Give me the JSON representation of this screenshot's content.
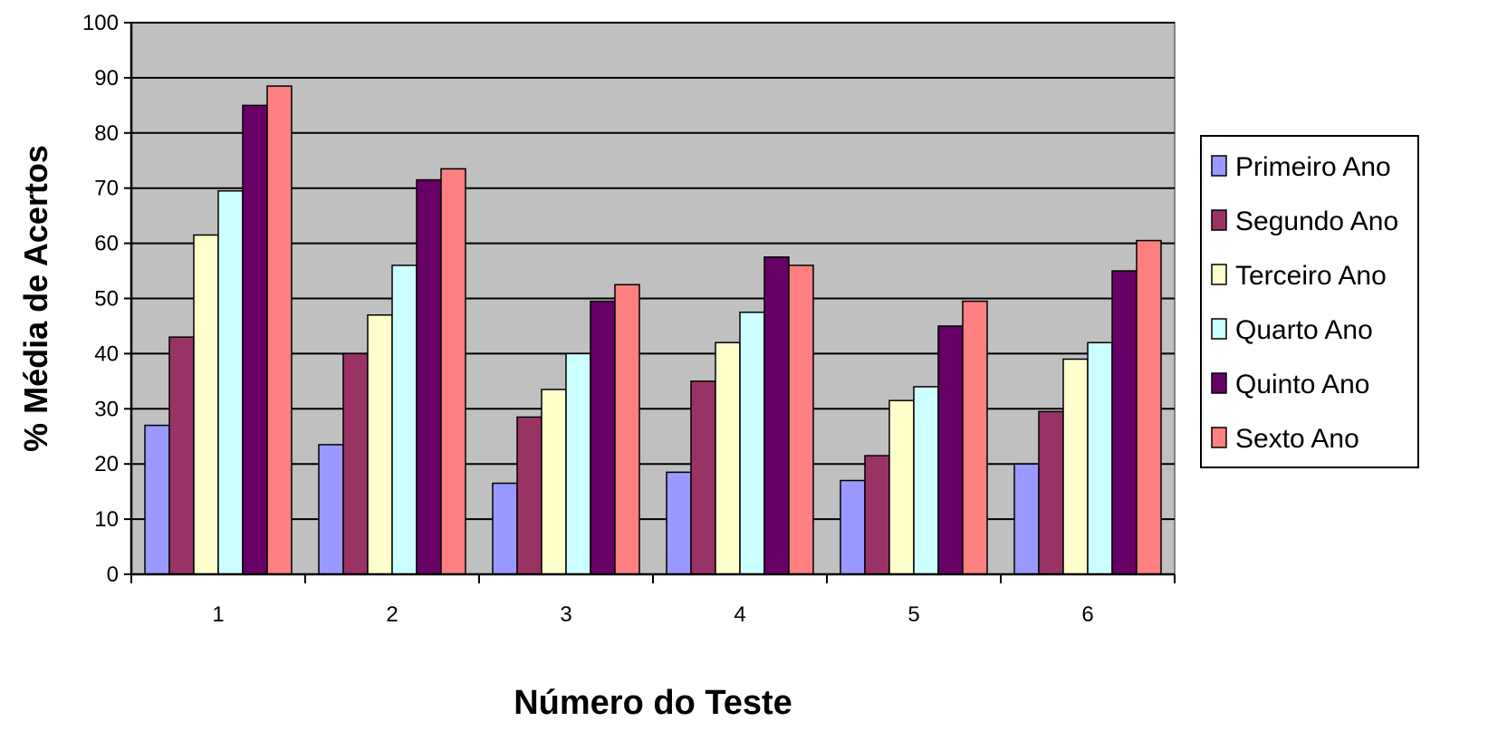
{
  "chart_data": {
    "type": "bar",
    "title": "",
    "xlabel": "Número do Teste",
    "ylabel": "% Média de Acertos",
    "categories": [
      "1",
      "2",
      "3",
      "4",
      "5",
      "6"
    ],
    "ylim": [
      0,
      100
    ],
    "yticks": [
      "0",
      "10",
      "20",
      "30",
      "40",
      "50",
      "60",
      "70",
      "80",
      "90",
      "100"
    ],
    "grid": true,
    "legend_position": "right",
    "plot_background": "#c0c0c0",
    "series": [
      {
        "name": "Primeiro Ano",
        "color": "#9999ff",
        "values": [
          27,
          23.5,
          16.5,
          18.5,
          17,
          20
        ]
      },
      {
        "name": "Segundo Ano",
        "color": "#993366",
        "values": [
          43,
          40,
          28.5,
          35,
          21.5,
          29.5
        ]
      },
      {
        "name": "Terceiro Ano",
        "color": "#ffffcc",
        "values": [
          61.5,
          47,
          33.5,
          42,
          31.5,
          39
        ]
      },
      {
        "name": "Quarto Ano",
        "color": "#ccffff",
        "values": [
          69.5,
          56,
          40,
          47.5,
          34,
          42
        ]
      },
      {
        "name": "Quinto Ano",
        "color": "#660066",
        "values": [
          85,
          71.5,
          49.5,
          57.5,
          45,
          55
        ]
      },
      {
        "name": "Sexto Ano",
        "color": "#ff8080",
        "values": [
          88.5,
          73.5,
          52.5,
          56,
          49.5,
          60.5
        ]
      }
    ]
  }
}
